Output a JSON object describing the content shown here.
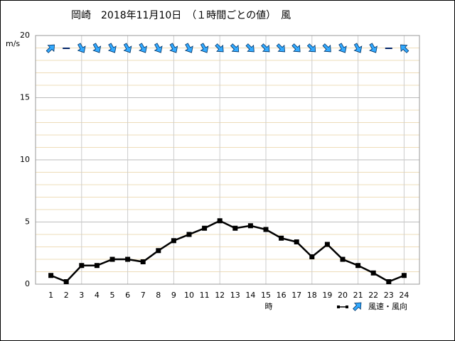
{
  "chart_data": {
    "type": "line",
    "title": "岡崎　2018年11月10日　（１時間ごとの値）　風",
    "y_unit": "m/s",
    "x_label": "時",
    "legend_label": "風速・風向",
    "x": [
      1,
      2,
      3,
      4,
      5,
      6,
      7,
      8,
      9,
      10,
      11,
      12,
      13,
      14,
      15,
      16,
      17,
      18,
      19,
      20,
      21,
      22,
      23,
      24
    ],
    "xlim": [
      0,
      25
    ],
    "xticks": [
      1,
      2,
      3,
      4,
      5,
      6,
      7,
      8,
      9,
      10,
      11,
      12,
      13,
      14,
      15,
      16,
      17,
      18,
      19,
      20,
      21,
      22,
      23,
      24
    ],
    "ylim": [
      0,
      20
    ],
    "yticks": [
      0,
      5,
      10,
      15,
      20
    ],
    "grid": true,
    "series": [
      {
        "name": "風速",
        "color": "#000000",
        "values": [
          0.7,
          0.2,
          1.5,
          1.5,
          2.0,
          2.0,
          1.8,
          2.7,
          3.5,
          4.0,
          4.5,
          5.1,
          4.5,
          4.7,
          4.4,
          3.7,
          3.4,
          2.2,
          3.2,
          2.0,
          1.5,
          0.9,
          0.2,
          0.7
        ]
      },
      {
        "name": "風向",
        "color": "#33aaff",
        "values": [
          45,
          null,
          150,
          150,
          150,
          150,
          150,
          150,
          150,
          150,
          150,
          135,
          135,
          135,
          135,
          135,
          135,
          135,
          135,
          150,
          150,
          150,
          null,
          315
        ]
      }
    ]
  }
}
